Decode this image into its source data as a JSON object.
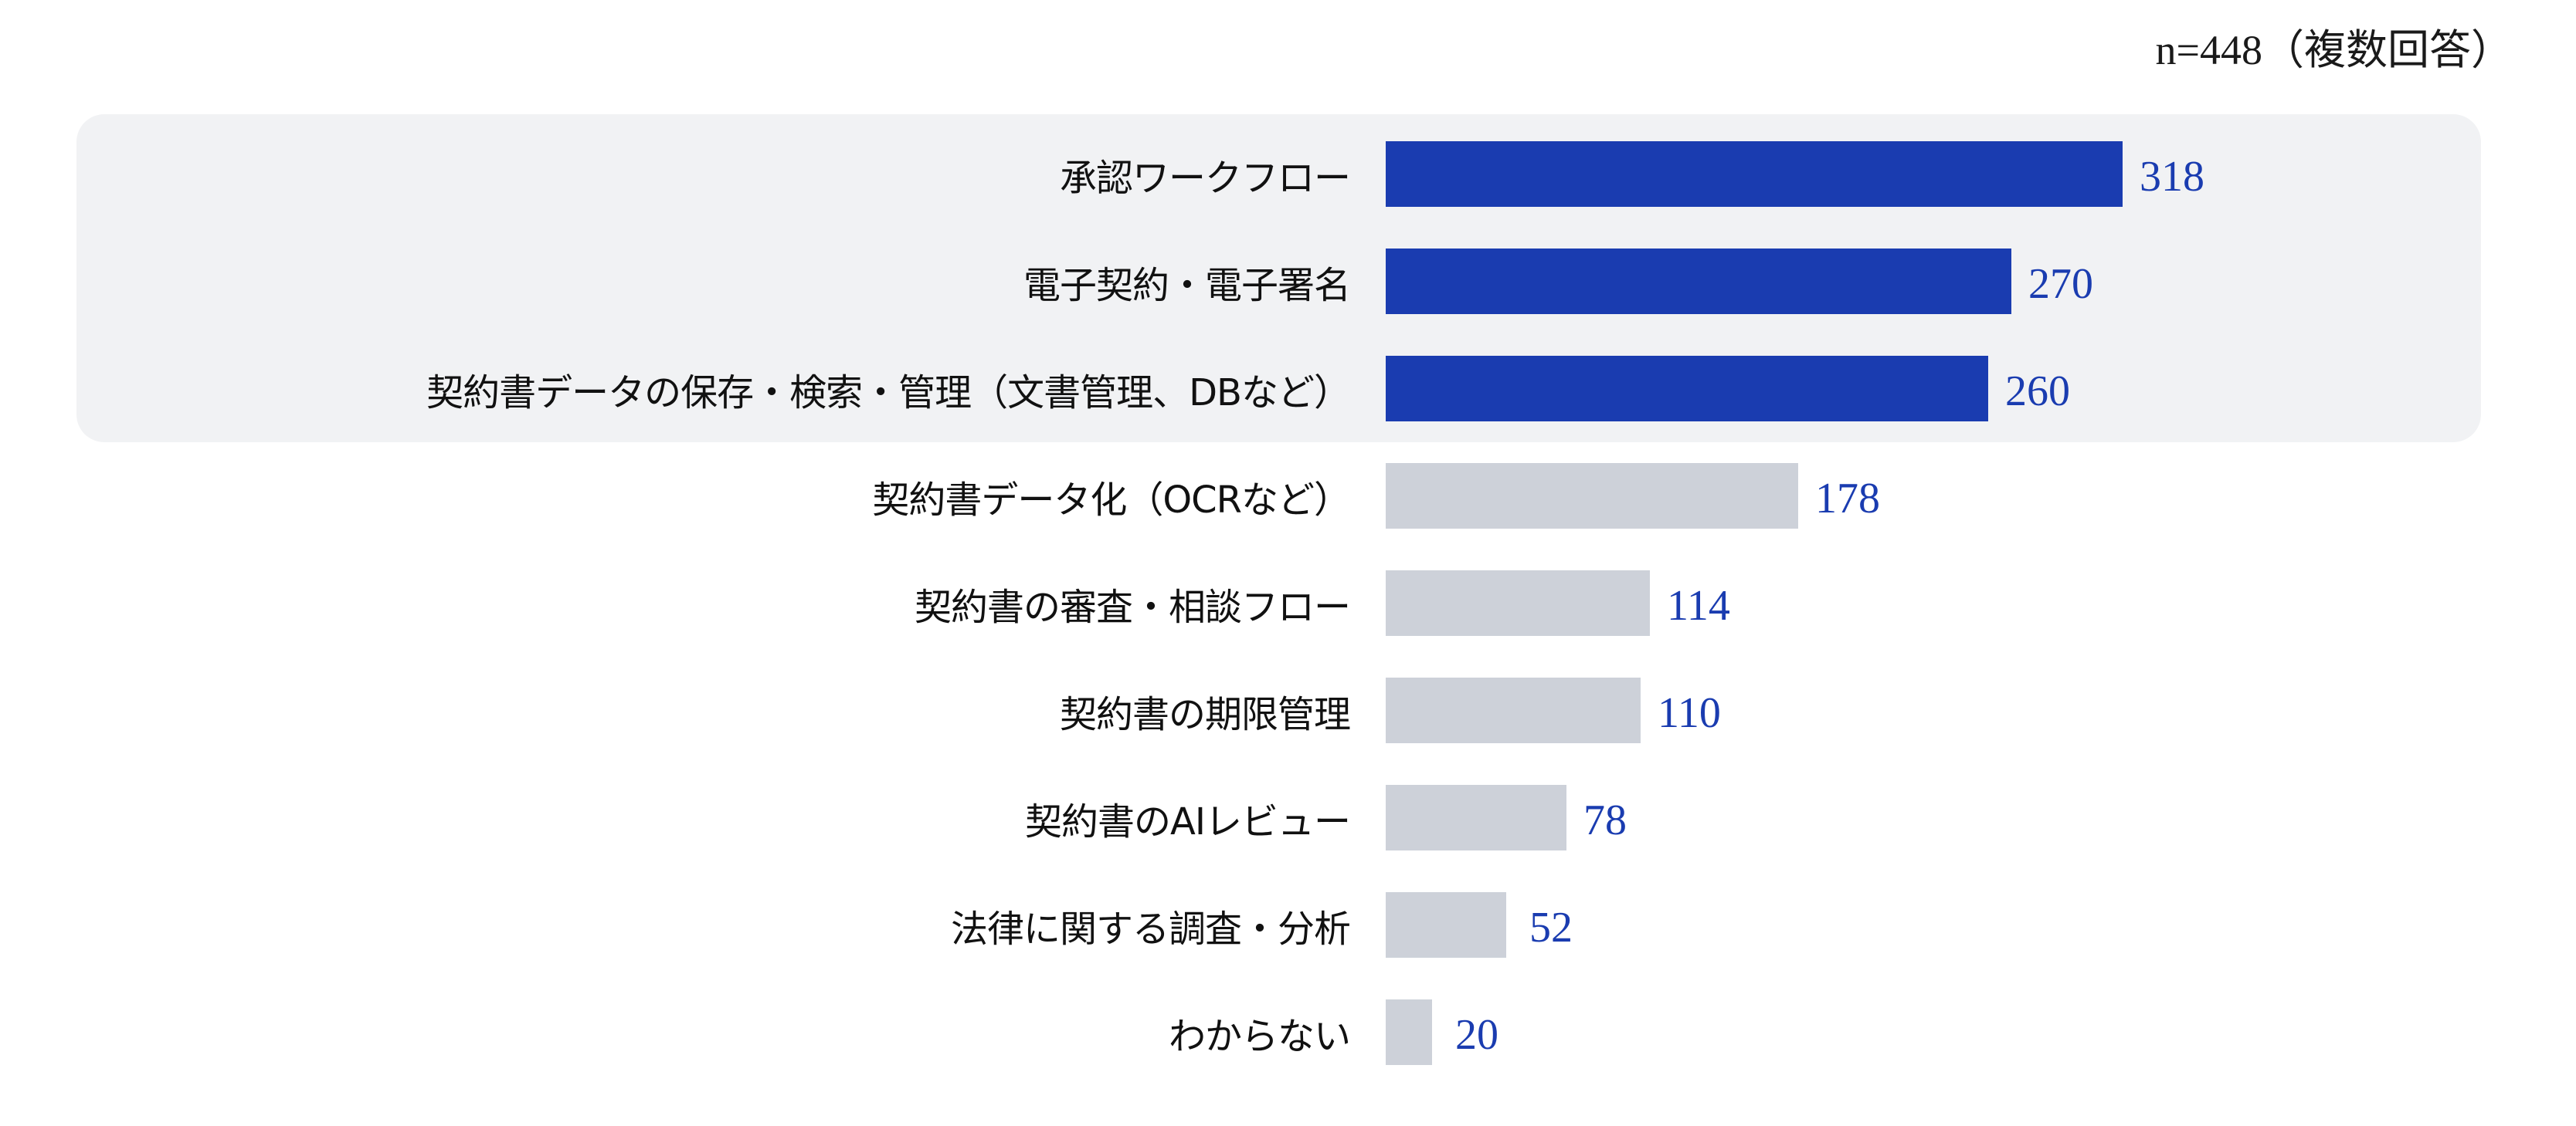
{
  "note": "n=448（複数回答）",
  "colors": {
    "highlight_bar": "#1a3cb0",
    "normal_bar": "#cdd1d9",
    "value_text": "#1a3cb0",
    "highlight_panel": "#f1f2f4"
  },
  "rows": [
    {
      "label": "承認ワークフロー",
      "value": "318",
      "highlighted": true
    },
    {
      "label": "電子契約・電子署名",
      "value": "270",
      "highlighted": true
    },
    {
      "label": "契約書データの保存・検索・管理（文書管理、DBなど）",
      "value": "260",
      "highlighted": true
    },
    {
      "label": "契約書データ化（OCRなど）",
      "value": "178",
      "highlighted": false
    },
    {
      "label": "契約書の審査・相談フロー",
      "value": "114",
      "highlighted": false
    },
    {
      "label": "契約書の期限管理",
      "value": "110",
      "highlighted": false
    },
    {
      "label": "契約書のAIレビュー",
      "value": "78",
      "highlighted": false
    },
    {
      "label": "法律に関する調査・分析",
      "value": "52",
      "highlighted": false
    },
    {
      "label": "わからない",
      "value": "20",
      "highlighted": false
    }
  ],
  "chart_data": {
    "type": "bar",
    "orientation": "horizontal",
    "title": "",
    "annotation": "n=448（複数回答）",
    "categories": [
      "承認ワークフロー",
      "電子契約・電子署名",
      "契約書データの保存・検索・管理（文書管理、DBなど）",
      "契約書データ化（OCRなど）",
      "契約書の審査・相談フロー",
      "契約書の期限管理",
      "契約書のAIレビュー",
      "法律に関する調査・分析",
      "わからない"
    ],
    "values": [
      318,
      270,
      260,
      178,
      114,
      110,
      78,
      52,
      20
    ],
    "highlighted_top_n": 3,
    "xlabel": "",
    "ylabel": "",
    "xlim": [
      0,
      318
    ],
    "grid": false,
    "legend": null,
    "data_labels": true
  }
}
